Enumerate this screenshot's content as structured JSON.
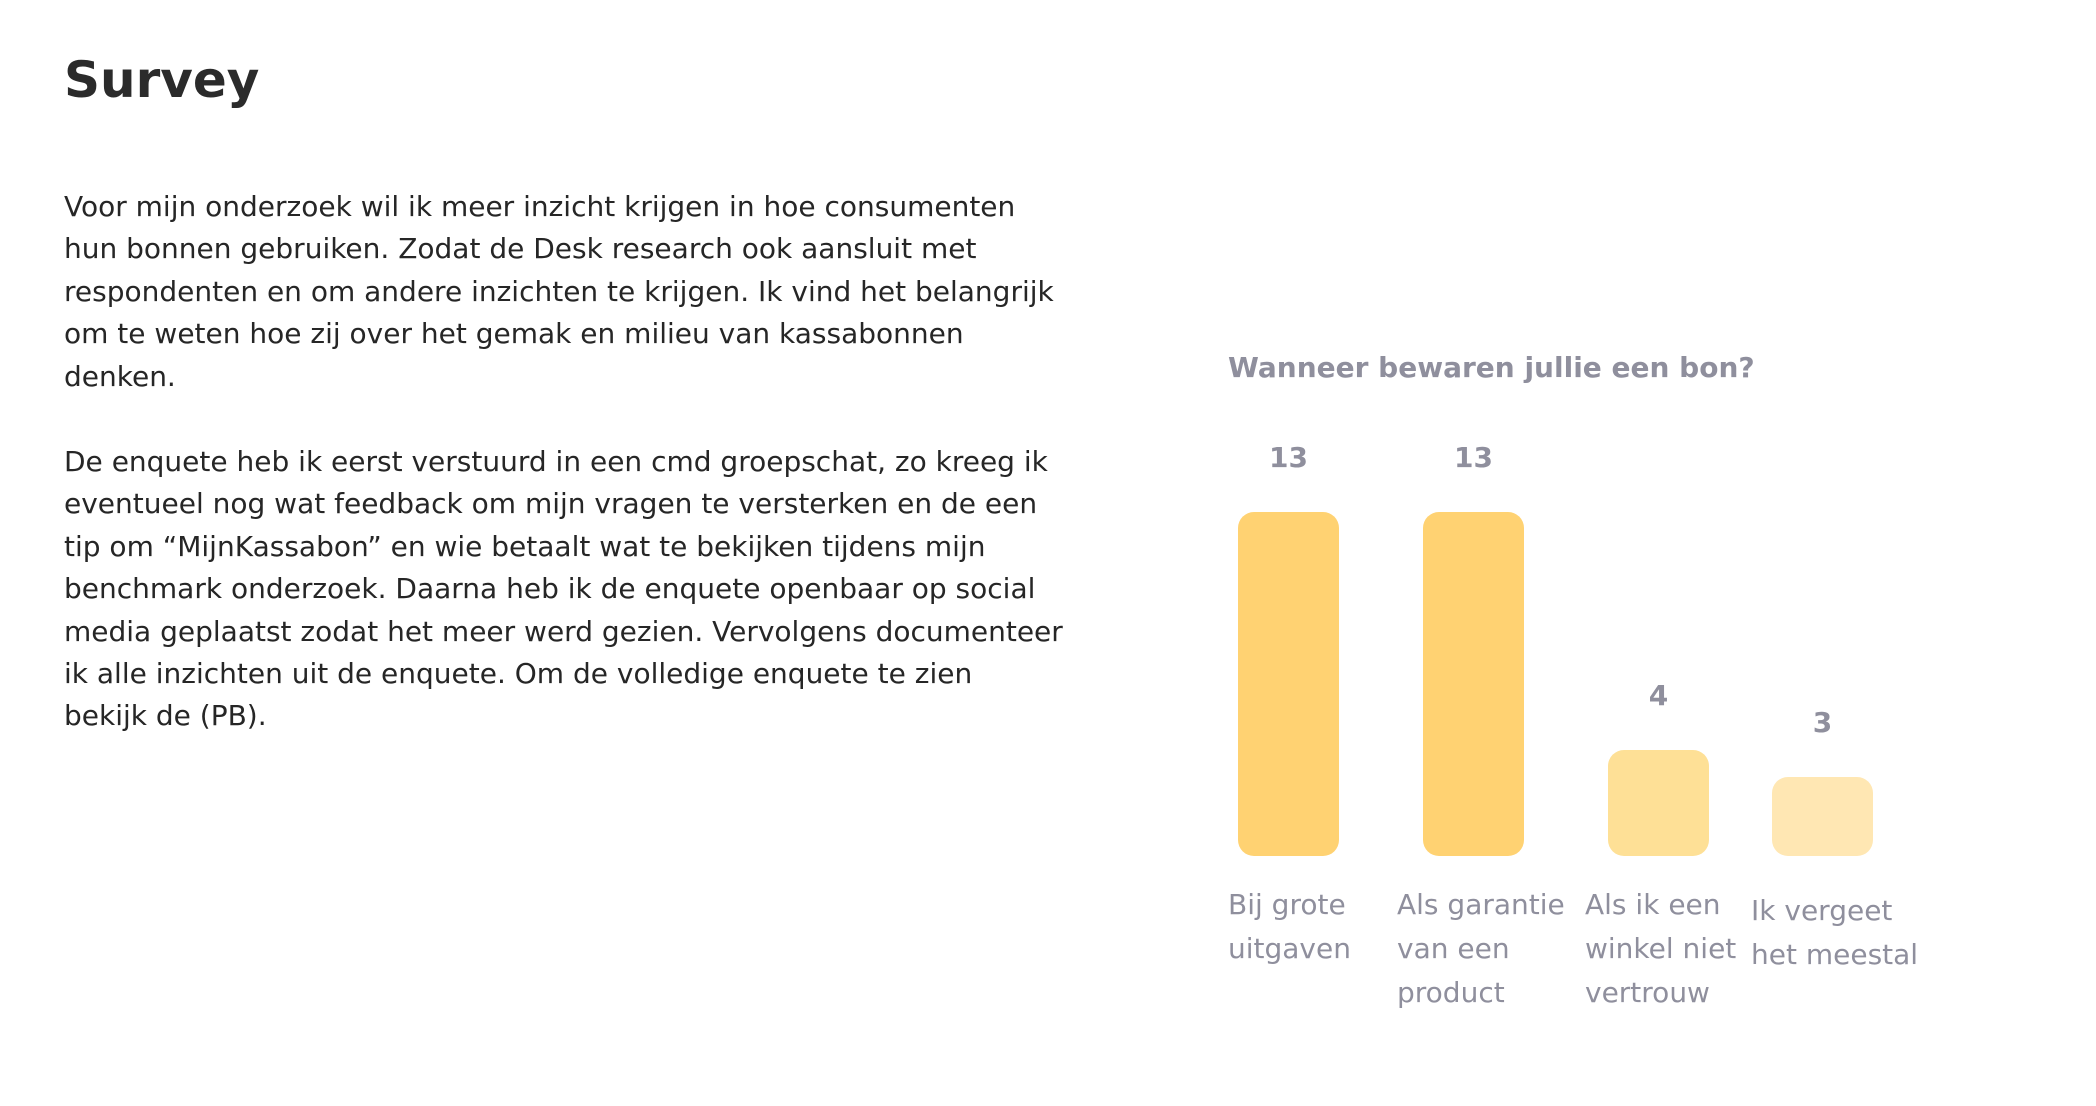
{
  "page": {
    "title": "Survey",
    "paragraphs": [
      "Voor mijn onderzoek wil ik meer inzicht krijgen in hoe consumenten hun bonnen gebruiken. Zodat de Desk research ook aansluit met respondenten en om andere inzichten te krijgen. Ik vind het belangrijk om te weten hoe zij over het gemak en milieu van kassabonnen denken.",
      "De enquete heb ik eerst verstuurd in een cmd groepschat, zo kreeg ik eventueel nog wat feedback om mijn vragen te versterken en de een tip om “MijnKassabon” en wie betaalt wat te bekijken tijdens mijn benchmark onderzoek. Daarna heb ik de enquete openbaar op social media geplaatst zodat het meer werd gezien. Vervolgens documenteer ik alle inzichten uit de enquete. Om de volledige enquete te zien bekijk de (PB)."
    ]
  },
  "chart_data": {
    "type": "bar",
    "title": "Wanneer bewaren jullie een bon?",
    "categories": [
      "Bij grote\nuitgaven",
      "Als garantie\nvan een\nproduct",
      "Als ik een\nwinkel niet\nvertrouw",
      "Ik vergeet\nhet meestal"
    ],
    "values": [
      13,
      13,
      4,
      3
    ],
    "colors": [
      "#ffd272",
      "#ffd272",
      "#fee096",
      "#ffe7b3"
    ],
    "grid": false,
    "legend": "none"
  }
}
